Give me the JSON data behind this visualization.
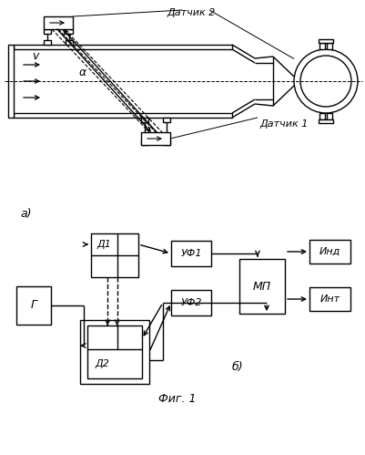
{
  "fig_label": "Фиг. 1",
  "part_a_label": "а)",
  "part_b_label": "б)",
  "sensor2_label": "Датчик 2",
  "sensor1_label": "Датчик 1",
  "v_label": "v",
  "alpha_label": "α",
  "bg_color": "#ffffff",
  "line_color": "#000000",
  "lbl_G": "Г",
  "lbl_D1": "Д1",
  "lbl_D2": "Д2",
  "lbl_UF1": "УФ1",
  "lbl_UF2": "УФ2",
  "lbl_MP": "МП",
  "lbl_Ind": "Инд",
  "lbl_Int": "Инт"
}
